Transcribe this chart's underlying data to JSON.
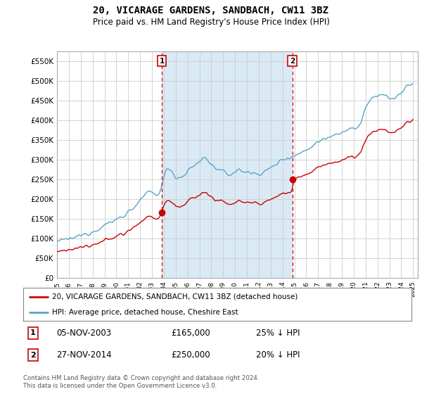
{
  "title": "20, VICARAGE GARDENS, SANDBACH, CW11 3BZ",
  "subtitle": "Price paid vs. HM Land Registry's House Price Index (HPI)",
  "legend_line1": "20, VICARAGE GARDENS, SANDBACH, CW11 3BZ (detached house)",
  "legend_line2": "HPI: Average price, detached house, Cheshire East",
  "transaction1_date": "05-NOV-2003",
  "transaction1_price": "£165,000",
  "transaction1_hpi": "25% ↓ HPI",
  "transaction2_date": "27-NOV-2014",
  "transaction2_price": "£250,000",
  "transaction2_hpi": "20% ↓ HPI",
  "footnote": "Contains HM Land Registry data © Crown copyright and database right 2024.\nThis data is licensed under the Open Government Licence v3.0.",
  "ylim": [
    0,
    575000
  ],
  "yticks": [
    0,
    50000,
    100000,
    150000,
    200000,
    250000,
    300000,
    350000,
    400000,
    450000,
    500000,
    550000
  ],
  "hpi_color": "#5ba3c9",
  "price_color": "#cc0000",
  "vline_color": "#cc0000",
  "fill_color": "#daeaf5",
  "plot_bg": "#ffffff",
  "grid_color": "#cccccc"
}
